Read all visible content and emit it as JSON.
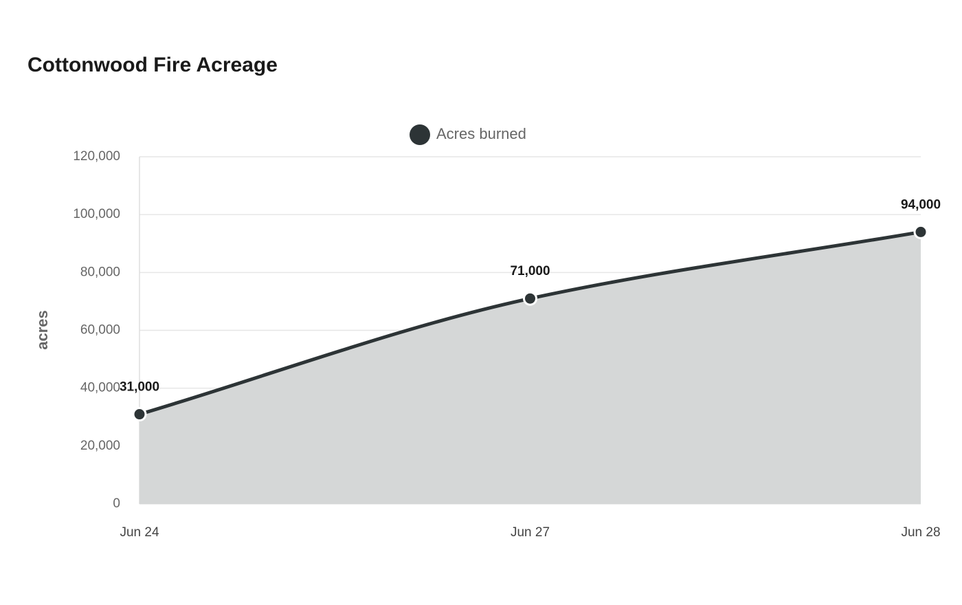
{
  "chart_data": {
    "type": "area",
    "title": "Cottonwood Fire Acreage",
    "y_label": "acres",
    "categories": [
      "Jun 24",
      "Jun 27",
      "Jun 28"
    ],
    "series": [
      {
        "name": "Acres burned",
        "color": "#2d3436",
        "fill": "#d5d7d7",
        "values": [
          31000,
          71000,
          94000
        ],
        "value_labels": [
          "31,000",
          "71,000",
          "94,000"
        ]
      }
    ],
    "ylim": [
      0,
      120000
    ],
    "yticks": [
      0,
      {
        "value": 20000,
        "label": "20,000"
      },
      {
        "value": 40000,
        "label": "40,000"
      },
      {
        "value": 60000,
        "label": "60,000"
      },
      {
        "value": 80000,
        "label": "80,000"
      },
      {
        "value": 100000,
        "label": "100,000"
      },
      {
        "value": 120000,
        "label": "120,000"
      }
    ],
    "grid": true,
    "legend": "top"
  }
}
